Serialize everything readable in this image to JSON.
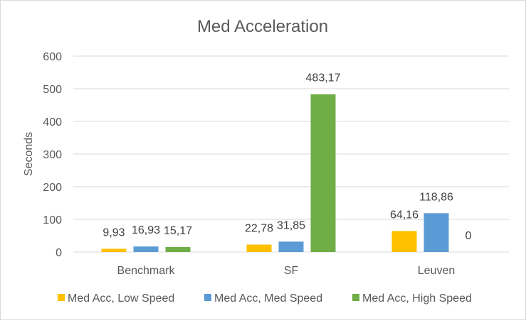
{
  "chart_data": {
    "type": "bar",
    "title": "Med Acceleration",
    "xlabel": "",
    "ylabel": "Seconds",
    "ylim": [
      0,
      600
    ],
    "yticks": [
      0,
      100,
      200,
      300,
      400,
      500,
      600
    ],
    "grid": true,
    "legend_position": "bottom",
    "categories": [
      "Benchmark",
      "SF",
      "Leuven"
    ],
    "series": [
      {
        "name": "Med Acc, Low Speed",
        "color": "#FFC000",
        "values": [
          9.93,
          22.78,
          64.16
        ],
        "labels": [
          "9,93",
          "22,78",
          "64,16"
        ]
      },
      {
        "name": "Med Acc, Med Speed",
        "color": "#5B9BD5",
        "values": [
          16.93,
          31.85,
          118.86
        ],
        "labels": [
          "16,93",
          "31,85",
          "118,86"
        ]
      },
      {
        "name": "Med Acc, High Speed",
        "color": "#70AD47",
        "values": [
          15.17,
          483.17,
          0
        ],
        "labels": [
          "15,17",
          "483,17",
          "0"
        ]
      }
    ]
  }
}
